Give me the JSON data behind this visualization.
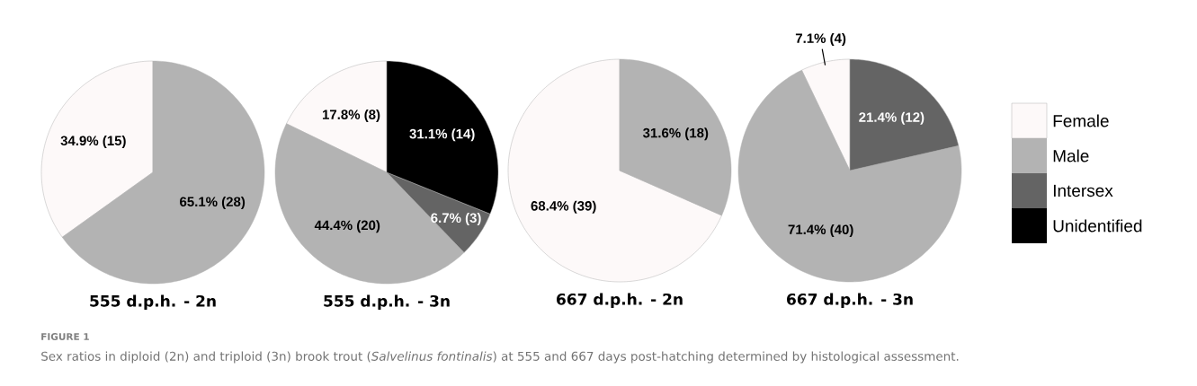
{
  "chart_data": [
    {
      "type": "pie",
      "title": "555 d.p.h. - 2n",
      "categories": [
        null,
        null
      ],
      "values": [
        34.9,
        65.1
      ],
      "value_labels": [
        "34.9% (15)",
        "65.1% (28)"
      ],
      "colors": [
        "#fdf9f9",
        "#b3b3b3"
      ],
      "annotations": [
        "FIGURE 1",
        "Sex ratios in diploid (2n) and triploid (3n) brook trout (*Salvelinus fontinalis*) at 555 and 667 days post-hatching determined by histological assessment."
      ]
    },
    {
      "type": "pie",
      "title": "555 d.p.h. - 3n",
      "categories": [
        null,
        null,
        null,
        null
      ],
      "values": [
        17.8,
        44.4,
        6.7,
        31.1
      ],
      "value_labels": [
        "17.8% (8)",
        "44.4% (20)",
        "6.7% (3)",
        "31.1% (14)"
      ],
      "colors": [
        "#fdf9f9",
        "#b3b3b3",
        "#646464",
        "#000000"
      ]
    },
    {
      "type": "pie",
      "title": "667 d.p.h. - 2n",
      "categories": [
        null,
        null
      ],
      "values": [
        68.4,
        31.6
      ],
      "value_labels": [
        "68.4% (39)",
        "31.6% (18)"
      ],
      "colors": [
        "#fdf9f9",
        "#b3b3b3"
      ]
    },
    {
      "type": "pie",
      "title": "667 d.p.h. - 3n",
      "categories": [
        "Female",
        "Male",
        "Intersex",
        "Unidentified"
      ],
      "values": [
        7.1,
        71.4,
        21.4,
        0
      ],
      "value_labels": [
        "7.1% (4)",
        "71.4% (40)",
        "21.4% (12)",
        null
      ],
      "colors": [
        "#fdf9f9",
        "#b3b3b3",
        "#646464",
        "#000000"
      ],
      "legend": "right"
    }
  ]
}
